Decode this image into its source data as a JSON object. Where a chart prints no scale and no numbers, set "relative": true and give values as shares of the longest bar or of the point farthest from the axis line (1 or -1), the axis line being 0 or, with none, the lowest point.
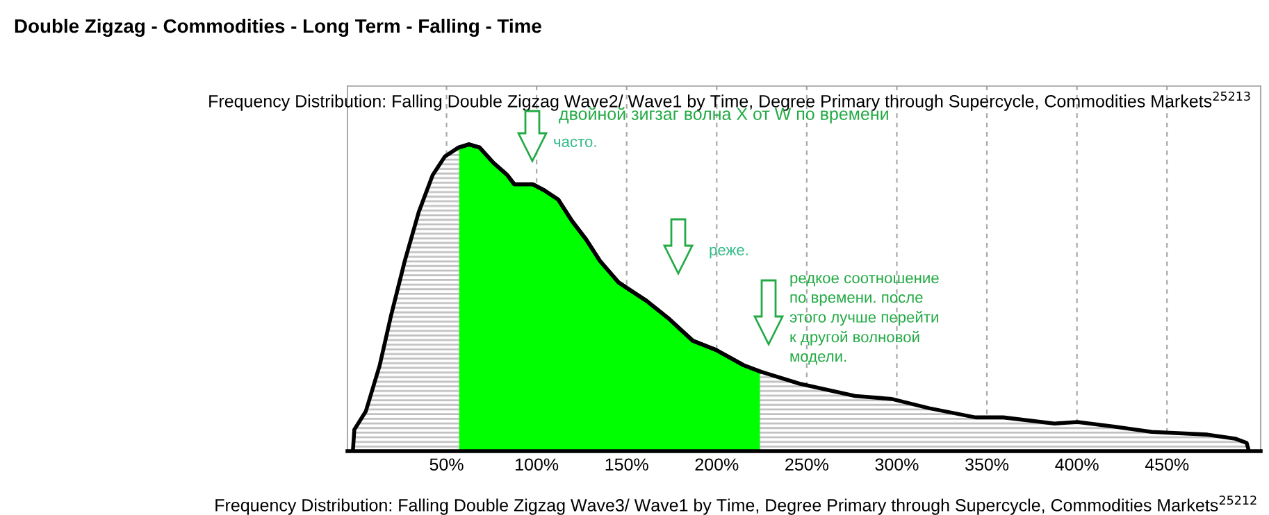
{
  "chart_data": {
    "type": "area",
    "relative": true,
    "title": "Double Zigzag - Commodities - Long Term - Falling - Time",
    "subtitle": "Frequency Distribution: Falling Double Zigzag Wave2/ Wave1 by Time, Degree Primary through Supercycle, Commodities Markets$^{25213}$",
    "x": [
      -2,
      -1.2,
      5.2,
      12.9,
      19.1,
      26.8,
      34.6,
      42.3,
      49,
      56.7,
      62.4,
      68.3,
      76,
      83.7,
      87.6,
      92.7,
      97.9,
      104.3,
      112,
      119.7,
      127.5,
      135.2,
      145.5,
      153.2,
      161,
      173.8,
      186.7,
      199.6,
      215,
      224,
      245.9,
      276.8,
      297.3,
      317.9,
      343.7,
      359.1,
      387.5,
      400.3,
      420.9,
      441.5,
      472.4,
      487.8,
      494.2,
      495.5
    ],
    "series": [
      {
        "color": "#c0c0c0",
        "values": [
          0,
          0.07,
          0.13,
          0.28,
          0.44,
          0.62,
          0.78,
          0.9,
          0.96,
          0.99,
          1.0,
          0.99,
          0.94,
          0.9,
          0.87,
          0.87,
          0.87,
          0.85,
          0.82,
          0.75,
          0.69,
          0.62,
          0.55,
          0.52,
          0.49,
          0.43,
          0.36,
          0.33,
          0.28,
          0.26,
          0.22,
          0.18,
          0.17,
          0.14,
          0.11,
          0.11,
          0.09,
          0.095,
          0.08,
          0.063,
          0.054,
          0.041,
          0.027,
          0
        ]
      },
      {
        "color": "#00ff00",
        "x": [
          57,
          62.4,
          68.3,
          76,
          83.7,
          87.6,
          92.7,
          97.9,
          104.3,
          112,
          119.7,
          127.5,
          135.2,
          145.5,
          153.2,
          161,
          173.8,
          186.7,
          199.6,
          215,
          224
        ],
        "values": [
          0.99,
          1.0,
          0.99,
          0.94,
          0.9,
          0.87,
          0.87,
          0.87,
          0.85,
          0.82,
          0.75,
          0.69,
          0.62,
          0.55,
          0.52,
          0.49,
          0.43,
          0.36,
          0.33,
          0.28,
          0.26
        ]
      }
    ],
    "xlim": [
      -5,
      502
    ],
    "xticks": [
      {
        "value": 50,
        "label": "50%"
      },
      {
        "value": 100,
        "label": "100%"
      },
      {
        "value": 150,
        "label": "150%"
      },
      {
        "value": 200,
        "label": "200%"
      },
      {
        "value": 250,
        "label": "250%"
      },
      {
        "value": 300,
        "label": "300%"
      },
      {
        "value": 350,
        "label": "350%"
      },
      {
        "value": 400,
        "label": "400%"
      },
      {
        "value": 450,
        "label": "450%"
      }
    ],
    "grid": "x",
    "tick_labels": "x",
    "annotations": [
      "двойной зигзаг волна X от W по времени",
      "часто.",
      "реже.",
      "редкое соотношение\nпо времени. после\nэтого лучше перейти\nк другой волновой\nмодели.",
      "Frequency Distribution: Falling Double Zigzag Wave3/ Wave1 by Time, Degree Primary through Supercycle, Commodities Markets$^{25212}$"
    ]
  }
}
